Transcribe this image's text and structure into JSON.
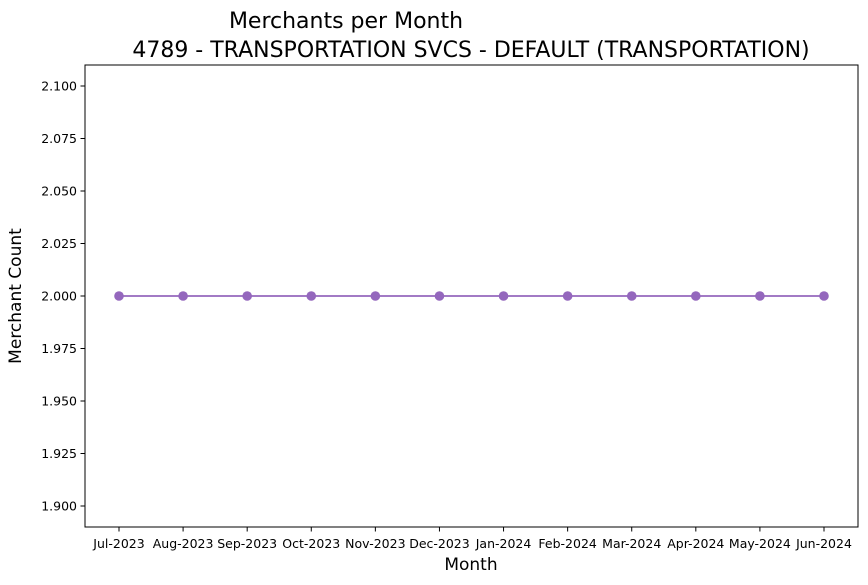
{
  "chart_data": {
    "type": "line",
    "title": "Merchants per Month",
    "subtitle": "4789 - TRANSPORTATION SVCS - DEFAULT (TRANSPORTATION)",
    "xlabel": "Month",
    "ylabel": "Merchant Count",
    "categories": [
      "Jul-2023",
      "Aug-2023",
      "Sep-2023",
      "Oct-2023",
      "Nov-2023",
      "Dec-2023",
      "Jan-2024",
      "Feb-2024",
      "Mar-2024",
      "Apr-2024",
      "May-2024",
      "Jun-2024"
    ],
    "series": [
      {
        "values": [
          2,
          2,
          2,
          2,
          2,
          2,
          2,
          2,
          2,
          2,
          2,
          2
        ],
        "color": "#9467bd",
        "marker": "circle"
      }
    ],
    "ylim": [
      1.89,
      2.11
    ],
    "yticks": [
      1.9,
      1.925,
      1.95,
      1.975,
      2.0,
      2.025,
      2.05,
      2.075,
      2.1
    ],
    "ytick_labels": [
      "1.900",
      "1.925",
      "1.950",
      "1.975",
      "2.000",
      "2.025",
      "2.050",
      "2.075",
      "2.100"
    ],
    "grid": false,
    "legend": "none"
  }
}
